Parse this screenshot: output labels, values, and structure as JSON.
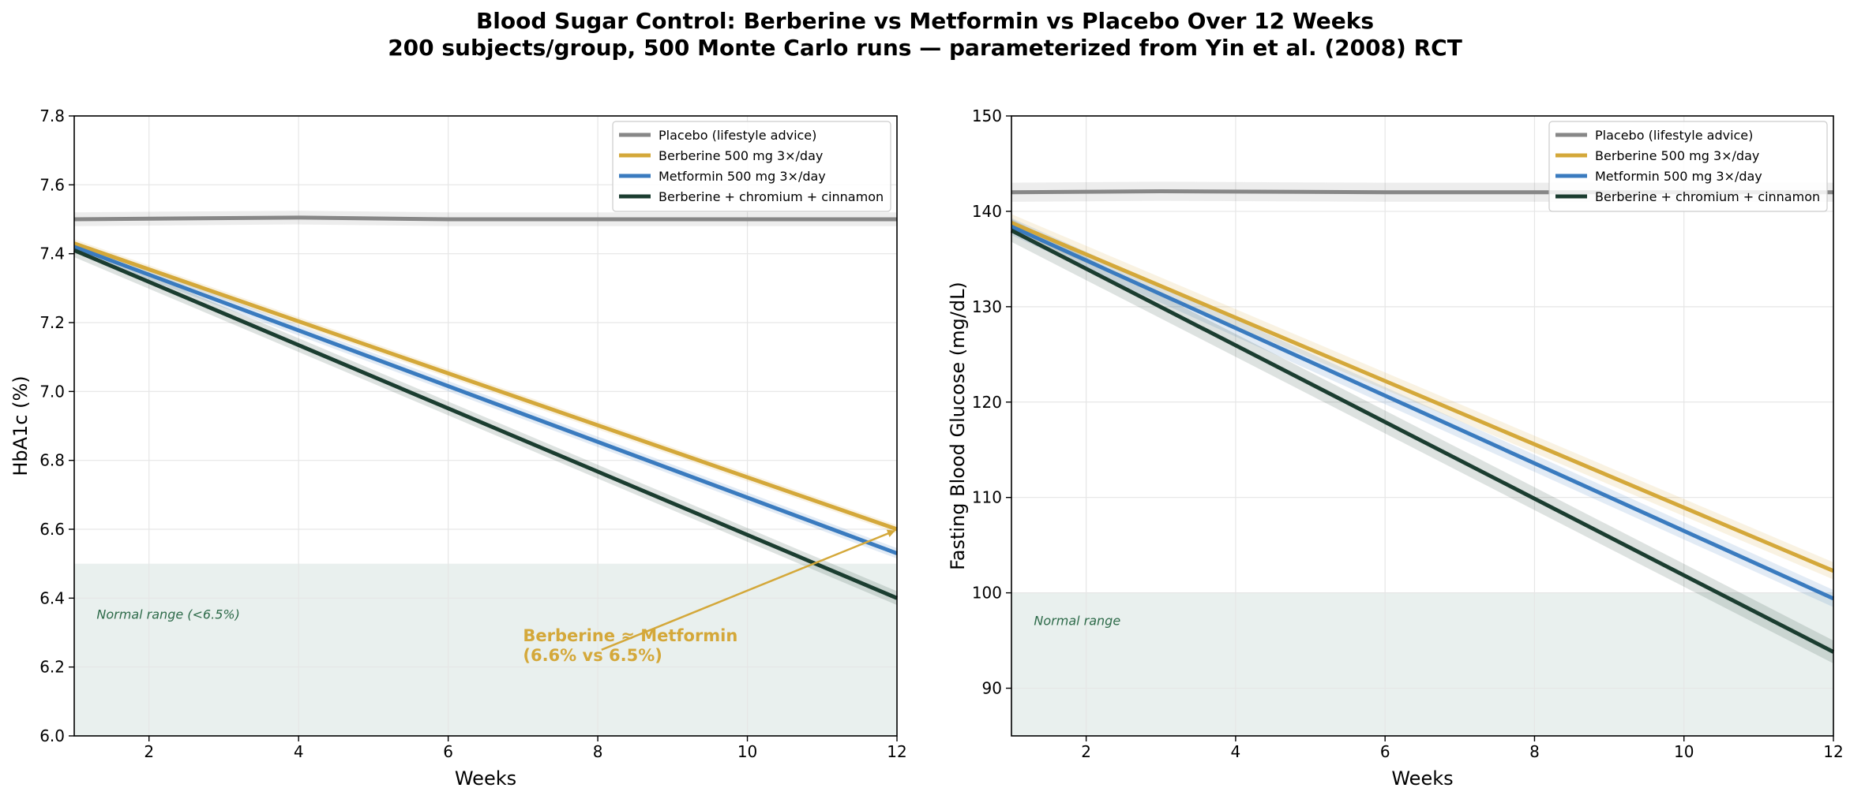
{
  "figure": {
    "title": "Blood Sugar Control: Berberine vs Metformin vs Placebo Over 12 Weeks",
    "subtitle": "200 subjects/group, 500 Monte Carlo runs — parameterized from Yin et al. (2008) RCT"
  },
  "colors": {
    "placebo": "#878787",
    "berberine": "#d4a83a",
    "metformin": "#3a7bbf",
    "combo": "#1b3d30",
    "normal_band": "#e9f0ee",
    "normal_text": "#2e6b4a",
    "grid": "#e6e6e6"
  },
  "chart_data": [
    {
      "type": "line",
      "xlabel": "Weeks",
      "ylabel": "HbA1c (%)",
      "xlim": [
        1,
        12
      ],
      "ylim": [
        6.0,
        7.8
      ],
      "xticks": [
        2,
        4,
        6,
        8,
        10,
        12
      ],
      "yticks": [
        6.0,
        6.2,
        6.4,
        6.6,
        6.8,
        7.0,
        7.2,
        7.4,
        7.6,
        7.8
      ],
      "ytick_decimals": 1,
      "grid": true,
      "legend_position": "top-right",
      "normal_range": {
        "low": 6.0,
        "high": 6.5,
        "label": "Normal range (<6.5%)",
        "label_at": [
          1.3,
          6.35
        ]
      },
      "series": [
        {
          "name": "Placebo (lifestyle advice)",
          "key": "placebo",
          "x": [
            1,
            4,
            6,
            12
          ],
          "y": [
            7.5,
            7.505,
            7.5,
            7.5
          ],
          "band": 0.02
        },
        {
          "name": "Berberine 500 mg 3×/day",
          "key": "berberine",
          "x": [
            1,
            12
          ],
          "y": [
            7.43,
            6.6
          ],
          "band": 0.012
        },
        {
          "name": "Metformin 500 mg 3×/day",
          "key": "metformin",
          "x": [
            1,
            12
          ],
          "y": [
            7.42,
            6.53
          ],
          "band": 0.015
        },
        {
          "name": "Berberine + chromium + cinnamon",
          "key": "combo",
          "x": [
            1,
            12
          ],
          "y": [
            7.41,
            6.4
          ],
          "band": 0.02
        }
      ],
      "annotation": {
        "line1": "Berberine ≈ Metformin",
        "line2": "(6.6% vs 6.5%)",
        "text_at": [
          7.0,
          6.27
        ],
        "arrow_from": [
          8.05,
          6.25
        ],
        "arrow_to": [
          12.0,
          6.6
        ]
      }
    },
    {
      "type": "line",
      "xlabel": "Weeks",
      "ylabel": "Fasting Blood Glucose (mg/dL)",
      "xlim": [
        1,
        12
      ],
      "ylim": [
        85,
        150
      ],
      "xticks": [
        2,
        4,
        6,
        8,
        10,
        12
      ],
      "yticks": [
        90,
        100,
        110,
        120,
        130,
        140,
        150
      ],
      "ytick_decimals": 0,
      "grid": true,
      "legend_position": "top-right",
      "normal_range": {
        "low": 85,
        "high": 100,
        "label": "Normal range",
        "label_at": [
          1.3,
          97
        ]
      },
      "series": [
        {
          "name": "Placebo (lifestyle advice)",
          "key": "placebo",
          "x": [
            1,
            3,
            6,
            12
          ],
          "y": [
            142.0,
            142.1,
            142.0,
            142.0
          ],
          "band": 1.0
        },
        {
          "name": "Berberine 500 mg 3×/day",
          "key": "berberine",
          "x": [
            1,
            12
          ],
          "y": [
            138.8,
            102.3
          ],
          "band": 0.9
        },
        {
          "name": "Metformin 500 mg 3×/day",
          "key": "metformin",
          "x": [
            1,
            12
          ],
          "y": [
            138.4,
            99.4
          ],
          "band": 0.9
        },
        {
          "name": "Berberine + chromium + cinnamon",
          "key": "combo",
          "x": [
            1,
            12
          ],
          "y": [
            138.0,
            93.8
          ],
          "band": 1.2
        }
      ]
    }
  ]
}
